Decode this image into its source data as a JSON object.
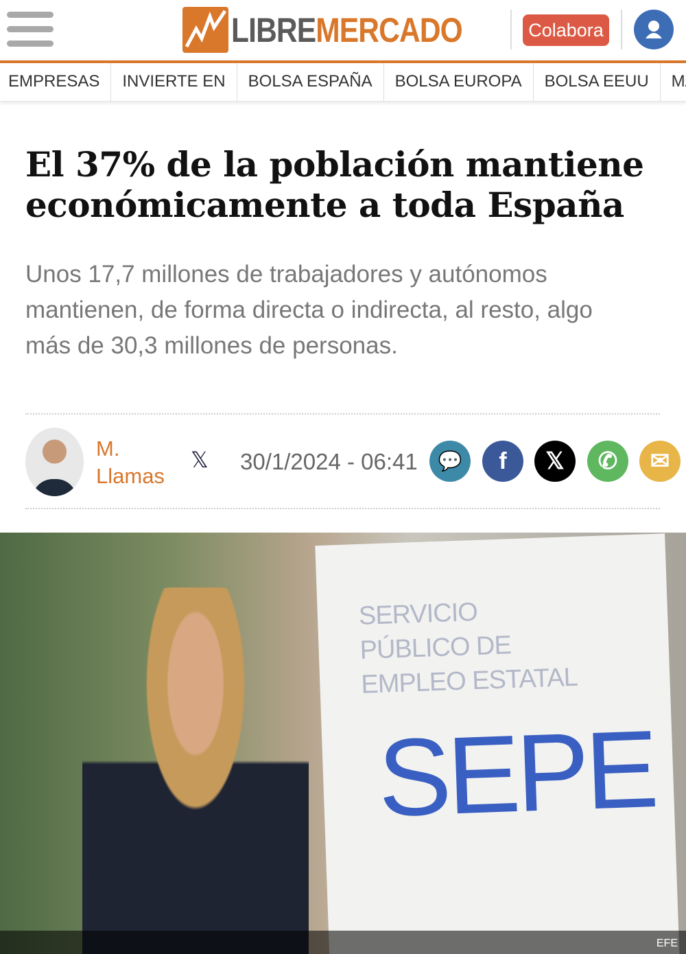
{
  "header": {
    "logo": {
      "part1": "LIBRE",
      "part2": "MERCADO"
    },
    "colabora": "Colabora",
    "brand_color": "#d9772b"
  },
  "nav": [
    "EMPRESAS",
    "INVIERTE EN",
    "BOLSA ESPAÑA",
    "BOLSA EUROPA",
    "BOLSA EEUU",
    "MATERIAS PR"
  ],
  "article": {
    "title": "El 37% de la población mantiene económicamente a toda España",
    "lead": "Unos 17,7 millones de trabajadores y autónomos mantienen, de forma directa o indirecta, al resto, algo más de 30,3 millones de personas.",
    "author": "M. Llamas",
    "author_social": "𝕏",
    "date": "30/1/2024 - 06:41",
    "share": [
      {
        "name": "comments",
        "glyph": "💬",
        "color": "#3d8aa8"
      },
      {
        "name": "facebook",
        "glyph": "f",
        "color": "#3b5998"
      },
      {
        "name": "x",
        "glyph": "𝕏",
        "color": "#000000"
      },
      {
        "name": "whatsapp",
        "glyph": "✆",
        "color": "#5fb760"
      },
      {
        "name": "email",
        "glyph": "✉",
        "color": "#e8b548"
      }
    ],
    "photo": {
      "sign_text": "SERVICIO PÚBLICO DE EMPLEO ESTATAL",
      "sign_logo": "SEPE",
      "credit": "EFE"
    }
  }
}
